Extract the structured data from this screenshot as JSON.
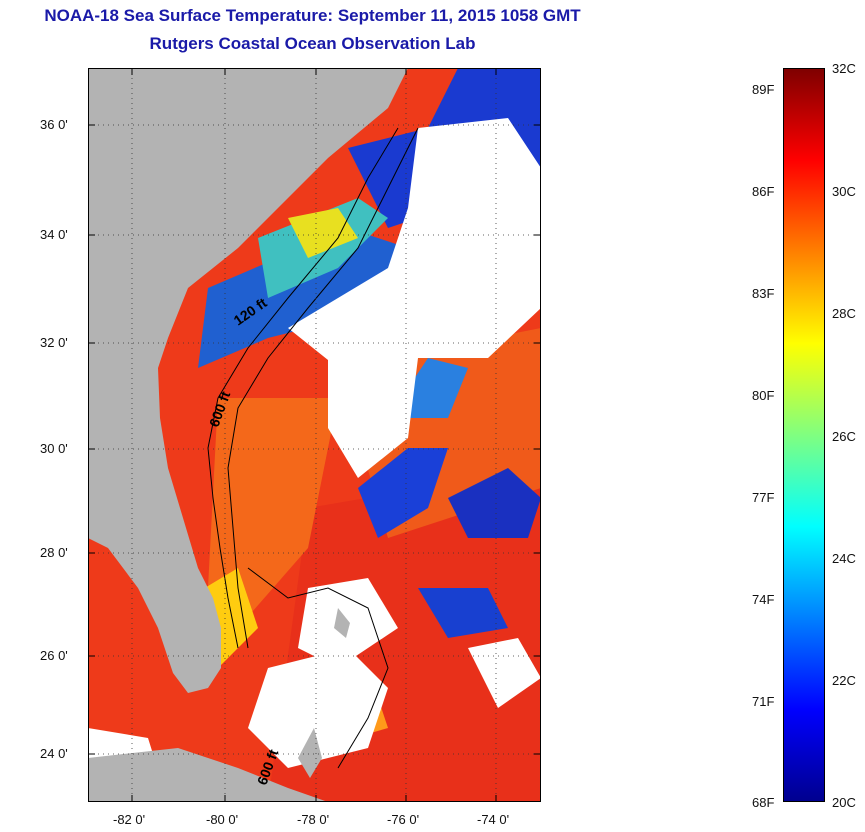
{
  "title": {
    "line1": "NOAA-18 Sea Surface Temperature:  September 11, 2015 1058 GMT",
    "line2": "Rutgers Coastal Ocean Observation Lab"
  },
  "map": {
    "y_ticks": [
      "36 0'",
      "34 0'",
      "32 0'",
      "30 0'",
      "28 0'",
      "26 0'",
      "24 0'"
    ],
    "x_ticks": [
      "-82 0'",
      "-80 0'",
      "-78 0'",
      "-76 0'",
      "-74 0'"
    ],
    "isobath_labels": [
      "120 ft",
      "600 ft",
      "600 ft"
    ],
    "colors": {
      "land": "#b3b3b3",
      "cloud": "#ffffff",
      "contour": "#000000"
    }
  },
  "colorbar": {
    "fahrenheit": [
      "89F",
      "86F",
      "83F",
      "80F",
      "77F",
      "74F",
      "71F",
      "68F"
    ],
    "celsius": [
      "32C",
      "30C",
      "28C",
      "26C",
      "24C",
      "22C",
      "20C"
    ],
    "gradient_colors": [
      "#7f0000",
      "#ff0000",
      "#ff8000",
      "#ffff00",
      "#80ff80",
      "#00ffff",
      "#0080ff",
      "#0000ff",
      "#00008f"
    ]
  }
}
